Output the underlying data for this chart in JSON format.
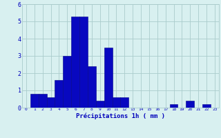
{
  "values": [
    0,
    0.8,
    0.8,
    0.6,
    1.6,
    3.0,
    5.3,
    5.3,
    2.4,
    0.4,
    3.5,
    0.6,
    0.6,
    0,
    0,
    0,
    0,
    0,
    0.2,
    0,
    0.4,
    0,
    0.2,
    0
  ],
  "bar_color": "#0808c0",
  "bar_edge_color": "#000088",
  "background_color": "#d8f0f0",
  "grid_color": "#aacccc",
  "xlabel": "Précipitations 1h ( mm )",
  "xlabel_color": "#0000bb",
  "tick_color": "#0000bb",
  "ylim": [
    0,
    6
  ],
  "yticks": [
    0,
    1,
    2,
    3,
    4,
    5,
    6
  ],
  "figsize": [
    3.2,
    2.0
  ],
  "dpi": 100
}
